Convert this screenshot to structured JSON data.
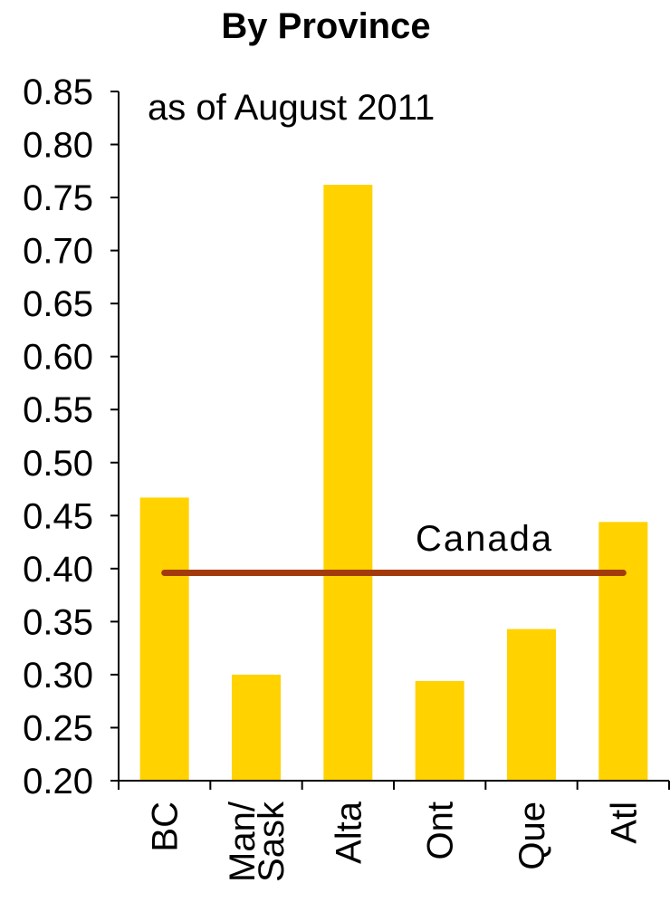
{
  "chart_data": {
    "type": "bar",
    "title": "By Province",
    "subtitle": "as of August 2011",
    "categories": [
      "BC",
      "Man/ Sask",
      "Alta",
      "Ont",
      "Que",
      "Atl"
    ],
    "category_lines": [
      [
        "BC"
      ],
      [
        "Man/",
        "Sask"
      ],
      [
        "Alta"
      ],
      [
        "Ont"
      ],
      [
        "Que"
      ],
      [
        "Atl"
      ]
    ],
    "values": [
      0.467,
      0.3,
      0.762,
      0.294,
      0.343,
      0.444
    ],
    "ylim": [
      0.2,
      0.85
    ],
    "yticks": [
      "0.20",
      "0.25",
      "0.30",
      "0.35",
      "0.40",
      "0.45",
      "0.50",
      "0.55",
      "0.60",
      "0.65",
      "0.70",
      "0.75",
      "0.80",
      "0.85"
    ],
    "grid": false,
    "reference_line": {
      "label": "Canada",
      "value": 0.396,
      "color": "#A33A0B"
    },
    "bar_color": "#FFD200"
  }
}
